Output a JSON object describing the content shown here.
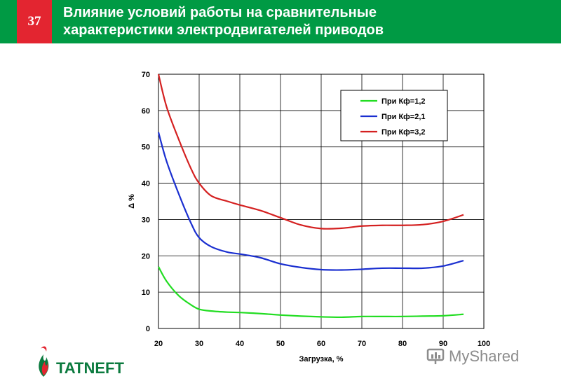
{
  "slide": {
    "number": "37",
    "title_line1": "Влияние условий работы на сравнительные",
    "title_line2": "характеристики электродвигателей приводов"
  },
  "colors": {
    "header_bg": "#009a44",
    "badge_bg": "#e32530",
    "series_green": "#22dd22",
    "series_blue": "#1a2fd0",
    "series_red": "#d42020"
  },
  "logo": {
    "text": "TATNEFT",
    "icon": "flame-logo-icon"
  },
  "watermark": {
    "text": "MyShared",
    "icon": "presentation-board-icon"
  },
  "chart_data": {
    "type": "line",
    "xlabel": "Загрузка, %",
    "ylabel": "Δ %",
    "xlim": [
      20,
      100
    ],
    "ylim": [
      0,
      70
    ],
    "xticks": [
      20,
      30,
      40,
      50,
      60,
      70,
      80,
      90,
      100
    ],
    "yticks": [
      0,
      10,
      20,
      30,
      40,
      50,
      60,
      70
    ],
    "grid": true,
    "legend_position": "top-right",
    "x": [
      20,
      22,
      25,
      28,
      30,
      33,
      37,
      40,
      45,
      50,
      55,
      60,
      65,
      70,
      75,
      80,
      85,
      90,
      95
    ],
    "series": [
      {
        "name": "При Кф=1,2",
        "color": "#22dd22",
        "values": [
          17,
          13,
          9,
          6.5,
          5.3,
          4.8,
          4.5,
          4.4,
          4.1,
          3.7,
          3.4,
          3.2,
          3.1,
          3.3,
          3.3,
          3.3,
          3.4,
          3.5,
          3.9
        ]
      },
      {
        "name": "При Кф=2,1",
        "color": "#1a2fd0",
        "values": [
          54,
          46,
          37,
          29,
          25,
          22.5,
          21,
          20.5,
          19.5,
          17.8,
          16.8,
          16.2,
          16.1,
          16.3,
          16.6,
          16.6,
          16.6,
          17.2,
          18.7
        ]
      },
      {
        "name": "При Кф=3,2",
        "color": "#d42020",
        "values": [
          70,
          61,
          52,
          44,
          40,
          36.5,
          35,
          34,
          32.5,
          30.5,
          28.5,
          27.5,
          27.6,
          28.2,
          28.4,
          28.4,
          28.6,
          29.5,
          31.3
        ]
      }
    ]
  }
}
